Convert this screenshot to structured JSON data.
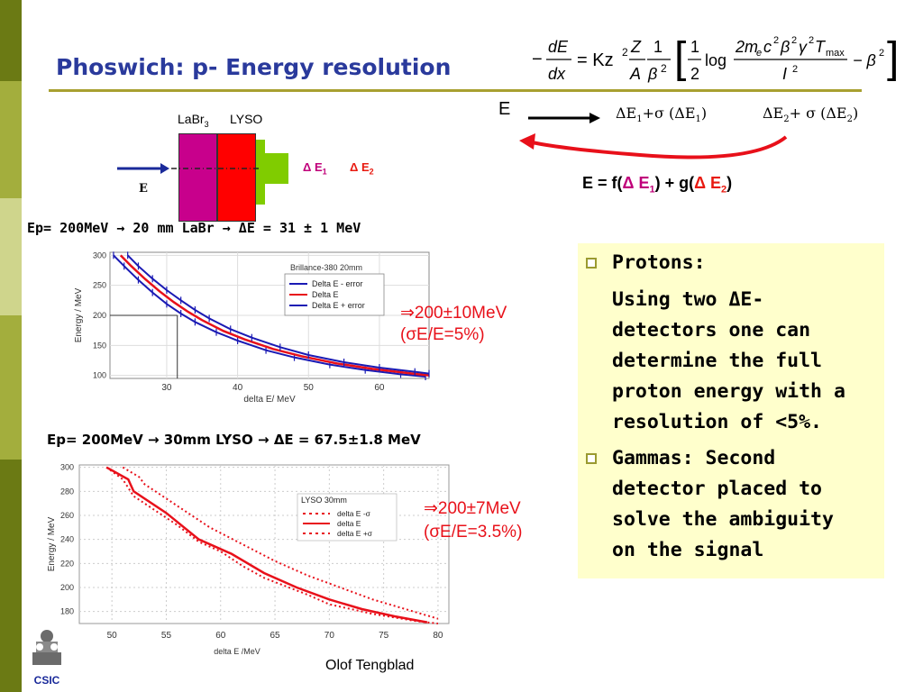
{
  "title": "Phoswich: p- Energy resolution",
  "formula": {
    "lhs_num": "dE",
    "lhs_den": "dx",
    "eq": "= Kz",
    "frac_num": "Z",
    "frac_den": "A",
    "one": "1",
    "beta2": "β",
    "half_num": "1",
    "half_den": "2",
    "log": "log",
    "log_num": "2m",
    "log_num_sub": "e",
    "log_num_rest": "c",
    "gamma": "γ",
    "tmax": "T",
    "tmax_sub": "max",
    "i2": "I",
    "two": "2",
    "minus": "−",
    "minus_beta": "− β"
  },
  "diagram": {
    "labr": "LaBr",
    "labr_sub": "3",
    "lyso": "LYSO",
    "beam_label": "E",
    "de1": "Δ E",
    "de1_sub": "1",
    "de2": "Δ E",
    "de2_sub": "2",
    "colors": {
      "labr": "#c8008c",
      "lyso": "#ff0000",
      "exit": "#80cc00",
      "beam": "#1a2a9a",
      "de1": "#c0007a",
      "de2": "#e81a10"
    }
  },
  "flow": {
    "e_label": "E",
    "delta_e1": "ΔE",
    "delta_e1_sub": "1",
    "plus_sigma1": "+σ (ΔE",
    "sub1": "1",
    "close1": ")",
    "delta_e2": "ΔE",
    "delta_e2_sub": "2",
    "plus_sigma2": "+ σ (ΔE",
    "sub2": "2",
    "close2": ")",
    "eq_start": "E = f(",
    "eq_de1": "Δ E",
    "eq_de1_sub": "1",
    "eq_mid": ") + g(",
    "eq_de2": "Δ E",
    "eq_de2_sub": "2",
    "eq_end": ")"
  },
  "line1": "Ep= 200MeV  →  20 mm LaBr  →  ΔE = 31 ± 1 MeV",
  "result1": {
    "line1": "⇒200±10MeV",
    "line2": "(σE/E=5%)"
  },
  "line2": "Ep= 200MeV  →  30mm LYSO  →   ΔE = 67.5±1.8 MeV",
  "result2": {
    "line1": "⇒200±7MeV",
    "line2": "(σE/E=3.5%)"
  },
  "bullets": {
    "b1_head": "Protons:",
    "b1_lines": [
      "Using two ΔE-",
      "detectors one can",
      "determine the full",
      "proton energy with a",
      "resolution of <5%."
    ],
    "b2_lines": [
      "Gammas: Second",
      "detector placed to",
      "solve the ambiguity",
      "on the signal"
    ]
  },
  "author": "Olof Tengblad",
  "logo_text": "CSIC",
  "chart_data": [
    {
      "type": "line",
      "title": "Brillance-380 20mm",
      "xlabel": "delta E/ MeV",
      "ylabel": "Energy / MeV",
      "xlim": [
        22,
        67
      ],
      "ylim": [
        95,
        305
      ],
      "xticks": [
        30,
        40,
        50,
        60
      ],
      "yticks": [
        100,
        150,
        200,
        250,
        300
      ],
      "legend_position": "top-right",
      "grid": true,
      "series": [
        {
          "name": "Delta E - error",
          "color": "#1a1ab4",
          "style": "errorbar",
          "x": [
            22.5,
            24,
            26,
            28,
            30,
            32,
            34,
            37,
            40,
            44,
            48,
            53,
            58,
            63,
            66.5
          ],
          "values": [
            300,
            282,
            259,
            238,
            219,
            203,
            189,
            172,
            158,
            142,
            130,
            118,
            109,
            102,
            98
          ]
        },
        {
          "name": "Delta E",
          "color": "#e8101a",
          "style": "line",
          "x": [
            23.5,
            25,
            27,
            29,
            31,
            33,
            35,
            38,
            41,
            45,
            49,
            54,
            59,
            64,
            67
          ],
          "values": [
            300,
            282,
            260,
            240,
            222,
            206,
            192,
            174,
            160,
            144,
            132,
            120,
            111,
            104,
            100
          ]
        },
        {
          "name": "Delta E + error",
          "color": "#1a1ab4",
          "style": "errorbar",
          "x": [
            24.5,
            26,
            28,
            30,
            32,
            34,
            36,
            39,
            42,
            46,
            50,
            55,
            60,
            65,
            67
          ],
          "values": [
            300,
            282,
            261,
            242,
            225,
            209,
            195,
            177,
            163,
            147,
            134,
            122,
            113,
            106,
            103
          ]
        }
      ],
      "marker": {
        "x": 31.5,
        "y": 200
      }
    },
    {
      "type": "line",
      "title": "LYSO 30mm",
      "xlabel": "delta E /MeV",
      "ylabel": "Energy / MeV",
      "xlim": [
        47,
        81
      ],
      "ylim": [
        170,
        302
      ],
      "xticks": [
        50,
        55,
        60,
        65,
        70,
        75,
        80
      ],
      "yticks": [
        180,
        200,
        220,
        240,
        260,
        280,
        300
      ],
      "legend_position": "top-center",
      "grid": true,
      "series": [
        {
          "name": "delta E -σ",
          "color": "#e8101a",
          "style": "dotted",
          "x": [
            49.5,
            51,
            52,
            54,
            56,
            58,
            60,
            62,
            64,
            66,
            68,
            70,
            72,
            74,
            76,
            78,
            80
          ],
          "values": [
            300,
            290,
            276,
            264,
            252,
            238,
            230,
            218,
            208,
            201,
            194,
            186,
            182,
            178,
            175,
            172,
            170
          ]
        },
        {
          "name": "delta E",
          "color": "#e8101a",
          "style": "solid",
          "x": [
            49.5,
            51.5,
            52,
            55,
            58,
            61,
            64,
            67,
            70,
            73,
            76,
            79
          ],
          "values": [
            300,
            290,
            280,
            262,
            240,
            228,
            212,
            200,
            190,
            182,
            176,
            171
          ]
        },
        {
          "name": "delta E +σ",
          "color": "#e8101a",
          "style": "dotted",
          "x": [
            51,
            52.5,
            53,
            56,
            59,
            62,
            65,
            68,
            71,
            74,
            77,
            80
          ],
          "values": [
            300,
            292,
            286,
            268,
            250,
            236,
            222,
            210,
            200,
            190,
            182,
            174
          ]
        }
      ]
    }
  ]
}
